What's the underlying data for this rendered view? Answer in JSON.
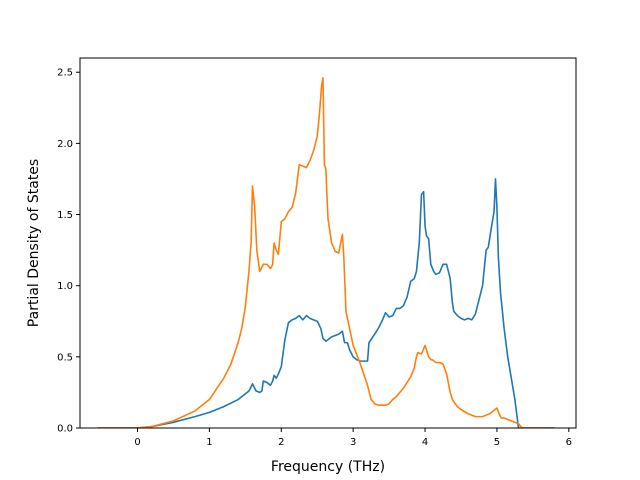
{
  "chart_data": {
    "type": "line",
    "title": "",
    "xlabel": "Frequency (THz)",
    "ylabel": "Partial Density of States",
    "xlim": [
      -0.8,
      6.1
    ],
    "ylim": [
      0,
      2.6
    ],
    "xticks": [
      0,
      1,
      2,
      3,
      4,
      5,
      6
    ],
    "yticks": [
      0.0,
      0.5,
      1.0,
      1.5,
      2.0,
      2.5
    ],
    "xtick_labels": [
      "0",
      "1",
      "2",
      "3",
      "4",
      "5",
      "6"
    ],
    "ytick_labels": [
      "0.0",
      "0.5",
      "1.0",
      "1.5",
      "2.0",
      "2.5"
    ],
    "grid": false,
    "legend": "none",
    "series": [
      {
        "color": "#1f77b4",
        "x": [
          -0.55,
          0.0,
          0.2,
          0.5,
          0.8,
          1.0,
          1.2,
          1.4,
          1.55,
          1.6,
          1.65,
          1.7,
          1.73,
          1.75,
          1.8,
          1.85,
          1.88,
          1.9,
          1.93,
          1.96,
          2.0,
          2.05,
          2.1,
          2.15,
          2.2,
          2.25,
          2.3,
          2.35,
          2.4,
          2.45,
          2.5,
          2.55,
          2.58,
          2.62,
          2.65,
          2.7,
          2.75,
          2.8,
          2.85,
          2.88,
          2.92,
          2.95,
          3.0,
          3.05,
          3.1,
          3.2,
          3.22,
          3.3,
          3.35,
          3.4,
          3.45,
          3.5,
          3.55,
          3.6,
          3.65,
          3.7,
          3.75,
          3.8,
          3.85,
          3.88,
          3.92,
          3.95,
          3.98,
          4.0,
          4.02,
          4.05,
          4.08,
          4.12,
          4.15,
          4.2,
          4.25,
          4.3,
          4.35,
          4.38,
          4.4,
          4.45,
          4.5,
          4.55,
          4.6,
          4.65,
          4.7,
          4.75,
          4.8,
          4.85,
          4.88,
          4.92,
          4.96,
          4.98,
          5.0,
          5.02,
          5.05,
          5.1,
          5.15,
          5.2,
          5.25,
          5.3,
          5.8
        ],
        "y": [
          0.0,
          0.0,
          0.01,
          0.04,
          0.08,
          0.11,
          0.15,
          0.2,
          0.26,
          0.31,
          0.26,
          0.25,
          0.26,
          0.33,
          0.32,
          0.3,
          0.33,
          0.37,
          0.35,
          0.38,
          0.43,
          0.62,
          0.74,
          0.76,
          0.77,
          0.79,
          0.76,
          0.79,
          0.77,
          0.76,
          0.75,
          0.7,
          0.63,
          0.61,
          0.62,
          0.64,
          0.65,
          0.66,
          0.68,
          0.6,
          0.6,
          0.55,
          0.5,
          0.48,
          0.47,
          0.47,
          0.6,
          0.66,
          0.7,
          0.75,
          0.81,
          0.78,
          0.79,
          0.84,
          0.84,
          0.86,
          0.92,
          1.03,
          1.05,
          1.1,
          1.3,
          1.64,
          1.66,
          1.42,
          1.35,
          1.33,
          1.15,
          1.1,
          1.08,
          1.09,
          1.15,
          1.15,
          1.05,
          0.88,
          0.82,
          0.79,
          0.77,
          0.76,
          0.77,
          0.76,
          0.8,
          0.9,
          1.0,
          1.25,
          1.27,
          1.4,
          1.52,
          1.75,
          1.55,
          1.2,
          0.95,
          0.7,
          0.5,
          0.35,
          0.2,
          0.0,
          0.0
        ]
      },
      {
        "color": "#ff7f0e",
        "x": [
          -0.55,
          0.0,
          0.2,
          0.5,
          0.8,
          1.0,
          1.2,
          1.3,
          1.4,
          1.45,
          1.5,
          1.55,
          1.58,
          1.6,
          1.63,
          1.66,
          1.7,
          1.75,
          1.8,
          1.85,
          1.88,
          1.9,
          1.93,
          1.96,
          2.0,
          2.05,
          2.1,
          2.15,
          2.2,
          2.25,
          2.3,
          2.35,
          2.4,
          2.45,
          2.5,
          2.53,
          2.56,
          2.58,
          2.6,
          2.62,
          2.65,
          2.7,
          2.75,
          2.8,
          2.85,
          2.87,
          2.9,
          2.95,
          3.0,
          3.1,
          3.2,
          3.25,
          3.3,
          3.35,
          3.4,
          3.45,
          3.5,
          3.55,
          3.6,
          3.65,
          3.7,
          3.75,
          3.8,
          3.85,
          3.88,
          3.9,
          3.95,
          4.0,
          4.05,
          4.08,
          4.1,
          4.15,
          4.2,
          4.25,
          4.3,
          4.35,
          4.38,
          4.42,
          4.45,
          4.5,
          4.6,
          4.7,
          4.75,
          4.8,
          4.85,
          4.9,
          4.95,
          5.0,
          5.03,
          5.06,
          5.1,
          5.2,
          5.3,
          5.35,
          5.8
        ],
        "y": [
          0.0,
          0.0,
          0.01,
          0.05,
          0.12,
          0.2,
          0.35,
          0.45,
          0.6,
          0.7,
          0.85,
          1.1,
          1.3,
          1.7,
          1.55,
          1.25,
          1.1,
          1.15,
          1.15,
          1.12,
          1.15,
          1.3,
          1.25,
          1.22,
          1.45,
          1.47,
          1.52,
          1.55,
          1.65,
          1.85,
          1.84,
          1.83,
          1.88,
          1.95,
          2.05,
          2.2,
          2.4,
          2.46,
          1.85,
          1.82,
          1.47,
          1.3,
          1.24,
          1.23,
          1.36,
          1.2,
          0.82,
          0.7,
          0.58,
          0.45,
          0.3,
          0.2,
          0.17,
          0.16,
          0.16,
          0.16,
          0.17,
          0.2,
          0.22,
          0.25,
          0.28,
          0.32,
          0.36,
          0.42,
          0.5,
          0.53,
          0.52,
          0.58,
          0.5,
          0.48,
          0.48,
          0.46,
          0.46,
          0.45,
          0.38,
          0.25,
          0.2,
          0.17,
          0.15,
          0.13,
          0.1,
          0.08,
          0.08,
          0.08,
          0.09,
          0.1,
          0.12,
          0.14,
          0.1,
          0.07,
          0.07,
          0.05,
          0.03,
          0.0,
          0.0
        ]
      }
    ]
  }
}
